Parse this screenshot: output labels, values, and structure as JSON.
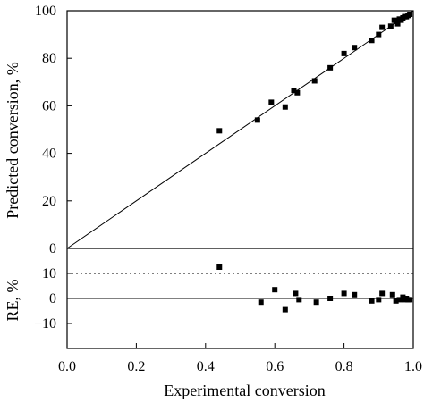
{
  "chart_data": [
    {
      "type": "scatter",
      "title": "",
      "ylabel": "Predicted conversion, %",
      "xlabel": "Experimental conversion",
      "xlim": [
        0,
        1
      ],
      "ylim": [
        0,
        100
      ],
      "yticks": [
        "0",
        "20",
        "40",
        "60",
        "80",
        "100"
      ],
      "grid": false,
      "reference_line": "y = 100x (parity)",
      "series": [
        {
          "x": [
            0.44,
            0.55,
            0.59,
            0.63,
            0.655,
            0.665,
            0.715,
            0.76,
            0.8,
            0.83,
            0.88,
            0.9,
            0.91,
            0.935,
            0.945,
            0.95,
            0.955,
            0.96,
            0.965,
            0.97,
            0.975,
            0.98,
            0.985,
            0.99
          ],
          "y": [
            49.5,
            54,
            61.5,
            59.5,
            66.5,
            65.5,
            70.5,
            76,
            82,
            84.5,
            87.5,
            90,
            93,
            93.5,
            96,
            95.5,
            94.5,
            96.5,
            96,
            97,
            97.5,
            97.5,
            98,
            98.5
          ]
        }
      ]
    },
    {
      "type": "scatter",
      "title": "",
      "ylabel": "RE, %",
      "xlabel": "Experimental conversion",
      "xlim": [
        0,
        1
      ],
      "ylim": [
        -20,
        20
      ],
      "xticks": [
        "0.0",
        "0.2",
        "0.4",
        "0.6",
        "0.8",
        "1.0"
      ],
      "yticks": [
        "−10",
        "0",
        "10"
      ],
      "reference_lines": [
        {
          "y": 0,
          "style": "solid"
        },
        {
          "y": 10,
          "style": "dotted"
        }
      ],
      "series": [
        {
          "x": [
            0.44,
            0.56,
            0.6,
            0.63,
            0.66,
            0.67,
            0.72,
            0.76,
            0.8,
            0.83,
            0.88,
            0.9,
            0.91,
            0.94,
            0.95,
            0.96,
            0.97,
            0.975,
            0.98,
            0.985,
            0.99
          ],
          "y": [
            12.5,
            -1.5,
            3.5,
            -4.5,
            2,
            -0.5,
            -1.5,
            0,
            2,
            1.5,
            -1,
            -0.5,
            2,
            1.5,
            -1,
            -0.5,
            0.5,
            -0.5,
            0,
            -0.5,
            -0.5
          ]
        }
      ]
    }
  ]
}
